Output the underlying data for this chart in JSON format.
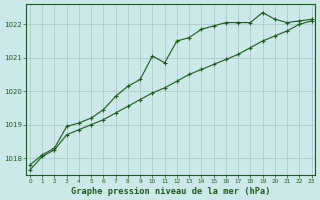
{
  "title": "Graphe pression niveau de la mer (hPa)",
  "x": [
    0,
    1,
    2,
    3,
    4,
    5,
    6,
    7,
    8,
    9,
    10,
    11,
    12,
    13,
    14,
    15,
    16,
    17,
    18,
    19,
    20,
    21,
    22,
    23
  ],
  "line1": [
    1017.8,
    1018.1,
    1018.3,
    1018.95,
    1019.05,
    1019.2,
    1019.45,
    1019.85,
    1020.15,
    1020.35,
    1021.05,
    1020.85,
    1021.5,
    1021.6,
    1021.85,
    1021.95,
    1022.05,
    1022.05,
    1022.05,
    1022.35,
    1022.15,
    1022.05,
    1022.1,
    1022.15
  ],
  "line2": [
    1017.65,
    1018.05,
    1018.25,
    1018.7,
    1018.85,
    1019.0,
    1019.15,
    1019.35,
    1019.55,
    1019.75,
    1019.95,
    1020.1,
    1020.3,
    1020.5,
    1020.65,
    1020.8,
    1020.95,
    1021.1,
    1021.3,
    1021.5,
    1021.65,
    1021.8,
    1022.0,
    1022.1
  ],
  "bg_color": "#cce8e8",
  "grid_color": "#aacccc",
  "line_color": "#1a5c1a",
  "marker_color": "#1a5c1a",
  "title_color": "#1a5c1a",
  "ylim": [
    1017.5,
    1022.6
  ],
  "yticks": [
    1018,
    1019,
    1020,
    1021,
    1022
  ],
  "xlim": [
    -0.3,
    23.3
  ]
}
